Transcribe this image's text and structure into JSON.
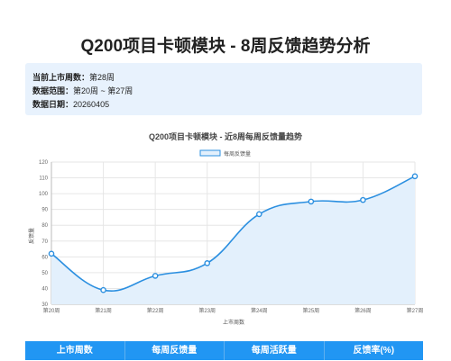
{
  "page": {
    "title": "Q200项目卡顿模块 - 8周反馈趋势分析"
  },
  "info": {
    "current_week_label": "当前上市周数",
    "current_week_value": "第28周",
    "range_label": "数据范围",
    "range_value": "第20周 ~ 第27周",
    "date_label": "数据日期",
    "date_value": "20260405"
  },
  "chart_data": {
    "type": "line",
    "title": "Q200项目卡顿模块 - 近8周每周反馈量趋势",
    "xlabel": "上市周数",
    "ylabel": "反馈量",
    "categories": [
      "第20周",
      "第21周",
      "第22周",
      "第23周",
      "第24周",
      "第25周",
      "第26周",
      "第27周"
    ],
    "series": [
      {
        "name": "每周反馈量",
        "values": [
          62,
          39,
          48,
          56,
          87,
          95,
          96,
          111
        ]
      }
    ],
    "ylim": [
      30,
      120
    ],
    "yticks": [
      30,
      40,
      50,
      60,
      70,
      80,
      90,
      100,
      110,
      120
    ],
    "grid": true,
    "legend": "top-center",
    "colors": {
      "line": "#2b8fe0",
      "fill": "#e3f0fc"
    }
  },
  "table": {
    "headers": [
      "上市周数",
      "每周反馈量",
      "每周活跃量",
      "反馈率(%)"
    ]
  }
}
